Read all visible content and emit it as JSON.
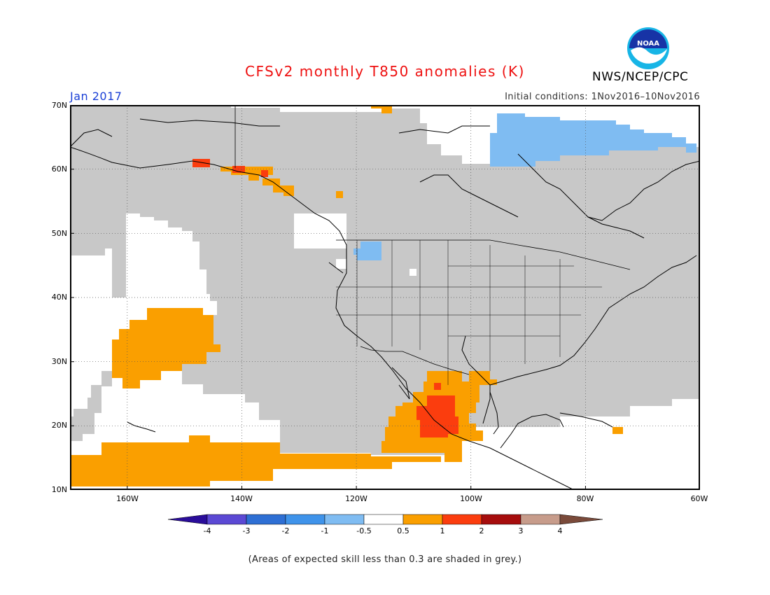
{
  "title": "CFSv2 monthly T850 anomalies (K)",
  "organization": "NWS/NCEP/CPC",
  "logo_icon": "noaa-logo-icon",
  "logo_text": "NOAA",
  "period": "Jan 2017",
  "initial_conditions": "Initial conditions: 1Nov2016–10Nov2016",
  "footnote": "(Areas of expected skill less than 0.3 are shaded in grey.)",
  "latitude_labels": [
    "70N",
    "60N",
    "50N",
    "40N",
    "30N",
    "20N",
    "10N"
  ],
  "longitude_labels": [
    "160W",
    "140W",
    "120W",
    "100W",
    "80W",
    "60W"
  ],
  "colorbar": {
    "labels": [
      "-4",
      "-3",
      "-2",
      "-1",
      "-0.5",
      "0.5",
      "1",
      "2",
      "3",
      "4"
    ],
    "colors": [
      "#2a0d9a",
      "#5b49d4",
      "#2e6fd4",
      "#3f93ea",
      "#7fbcf2",
      "#ffffff",
      "#fa9f00",
      "#fb3d0e",
      "#a60d0d",
      "#c79c8b",
      "#7a4a3a"
    ]
  },
  "colors": {
    "skill_grey": "#c8c8c8",
    "positive_0p5_1": "#fa9f00",
    "positive_1_2": "#fb3d0e",
    "negative_0p5_1": "#7fbcf2",
    "title_red": "#e11111",
    "period_blue": "#1a3fd6"
  }
}
